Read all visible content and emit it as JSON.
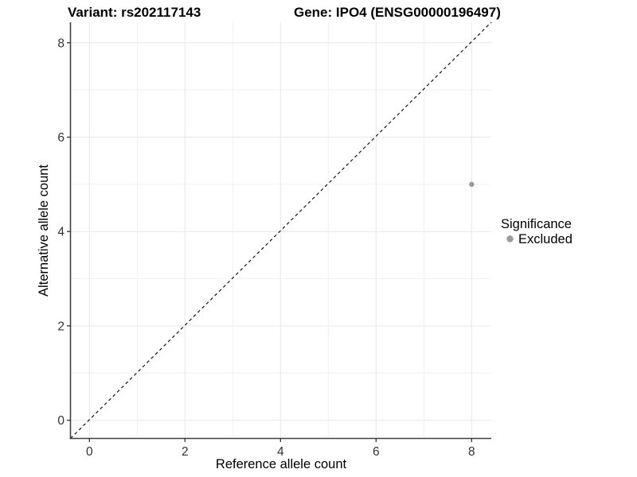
{
  "chart_data": {
    "type": "scatter",
    "titles": {
      "left": "Variant: rs202117143",
      "right": "Gene: IPO4 (ENSG00000196497)"
    },
    "xlabel": "Reference allele count",
    "ylabel": "Alternative allele count",
    "x_ticks": [
      "0",
      "2",
      "4",
      "6",
      "8"
    ],
    "y_ticks": [
      "0",
      "2",
      "4",
      "6",
      "8"
    ],
    "x_tick_values": [
      0,
      2,
      4,
      6,
      8
    ],
    "y_tick_values": [
      0,
      2,
      4,
      6,
      8
    ],
    "xlim": [
      -0.4,
      8.42
    ],
    "ylim": [
      -0.4,
      8.42
    ],
    "grid": "on",
    "gridline_interval": 1,
    "reference_line": {
      "type": "identity y = x",
      "style": "dashed",
      "color": "#000000"
    },
    "series": [
      {
        "name": "Excluded",
        "color": "#9a9a9a",
        "points": [
          {
            "x": 8,
            "y": 5
          }
        ]
      }
    ],
    "legend": {
      "title": "Significance",
      "position": "right",
      "entries": [
        {
          "label": "Excluded",
          "color": "#9a9a9a"
        }
      ]
    }
  },
  "colors": {
    "background": "#ffffff",
    "grid_major": "#e7e7e7",
    "grid_minor": "#f0f0f0",
    "axis_line": "#404040",
    "tick_mark": "#333333"
  }
}
